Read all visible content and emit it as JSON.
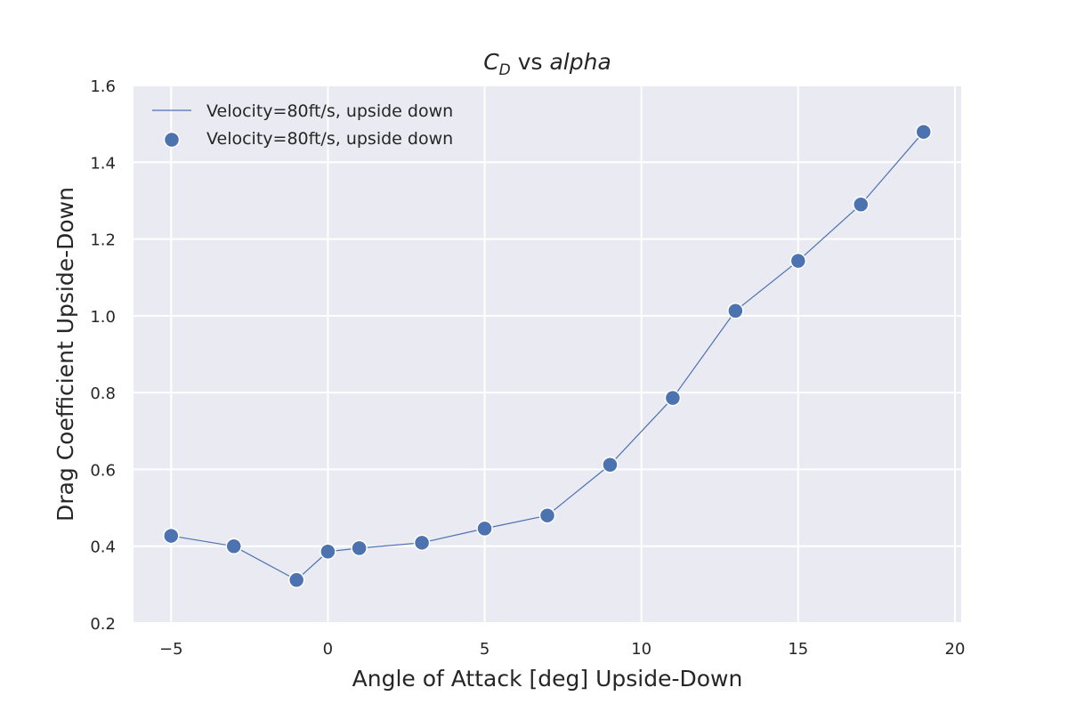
{
  "chart_data": {
    "type": "line",
    "title": {
      "main": "C",
      "sub": "D",
      "rest_plain": " vs ",
      "rest_italic": "alpha"
    },
    "xlabel": "Angle of Attack [deg] Upside-Down",
    "ylabel": "Drag Coefficient Upside-Down",
    "xlim": [
      -6.2,
      20.2
    ],
    "ylim": [
      0.2,
      1.6
    ],
    "xticks": [
      -5,
      0,
      5,
      10,
      15,
      20
    ],
    "xtick_labels": [
      "−5",
      "0",
      "5",
      "10",
      "15",
      "20"
    ],
    "yticks": [
      0.2,
      0.4,
      0.6,
      0.8,
      1.0,
      1.2,
      1.4,
      1.6
    ],
    "ytick_labels": [
      "0.2",
      "0.4",
      "0.6",
      "0.8",
      "1.0",
      "1.2",
      "1.4",
      "1.6"
    ],
    "grid": true,
    "legend_position": "top-left",
    "series": [
      {
        "name": "Velocity=80ft/s, upside down",
        "marker_name": "Velocity=80ft/s, upside down",
        "color": "#4c72b0",
        "x": [
          -5,
          -3,
          -1,
          0,
          1,
          3,
          5,
          7,
          9,
          11,
          13,
          15,
          17,
          19
        ],
        "y": [
          0.427,
          0.4,
          0.312,
          0.386,
          0.395,
          0.409,
          0.446,
          0.48,
          0.612,
          0.786,
          1.013,
          1.143,
          1.29,
          1.479
        ]
      }
    ],
    "colors": {
      "background": "#eaeaf2",
      "grid": "#ffffff",
      "text": "#262626"
    }
  }
}
